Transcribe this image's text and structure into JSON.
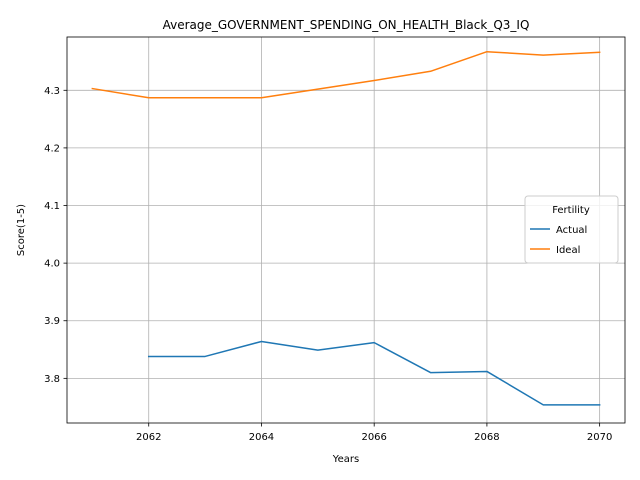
{
  "chart_data": {
    "type": "line",
    "title": "Average_GOVERNMENT_SPENDING_ON_HEALTH_Black_Q3_IQ",
    "xlabel": "Years",
    "ylabel": "Score(1-5)",
    "xlim": [
      2060.55,
      2070.45
    ],
    "ylim": [
      3.7225,
      4.3925
    ],
    "xticks": [
      2062,
      2064,
      2066,
      2068,
      2070
    ],
    "yticks": [
      3.8,
      3.9,
      4.0,
      4.1,
      4.2,
      4.3
    ],
    "ytick_labels": [
      "3.8",
      "3.9",
      "4.0",
      "4.1",
      "4.2",
      "4.3"
    ],
    "grid": true,
    "legend": {
      "title": "Fertility",
      "position": "center-right"
    },
    "series": [
      {
        "name": "Actual",
        "color": "#1f77b4",
        "x": [
          2062,
          2063,
          2064,
          2065,
          2066,
          2067,
          2068,
          2069,
          2070
        ],
        "values": [
          3.838,
          3.838,
          3.864,
          3.849,
          3.862,
          3.81,
          3.812,
          3.754,
          3.754
        ]
      },
      {
        "name": "Ideal",
        "color": "#ff7f0e",
        "x": [
          2061,
          2062,
          2063,
          2064,
          2065,
          2066,
          2067,
          2068,
          2069,
          2070
        ],
        "values": [
          4.303,
          4.287,
          4.287,
          4.287,
          4.302,
          4.317,
          4.333,
          4.367,
          4.361,
          4.366
        ]
      }
    ]
  }
}
